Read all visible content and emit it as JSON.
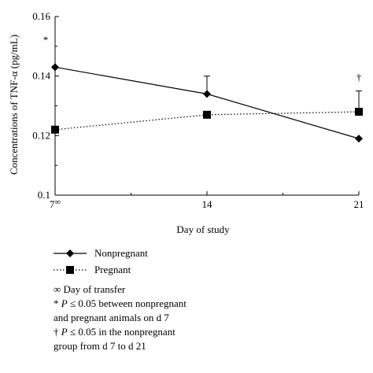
{
  "chart_data": {
    "type": "line",
    "xlabel": "Day of study",
    "ylabel": "Concentrations of TNF-α (pg/mL)",
    "x": [
      7,
      14,
      21
    ],
    "x_tick_labels": [
      "7",
      "14",
      "21"
    ],
    "x_tick_superscript_day7": "∞",
    "xlim": [
      7,
      21
    ],
    "ylim": [
      0.1,
      0.16
    ],
    "y_ticks": [
      0.1,
      0.12,
      0.14,
      0.16
    ],
    "y_tick_labels": [
      "0.1",
      "0.12",
      "0.14",
      "0.16"
    ],
    "series": [
      {
        "name": "Nonpregnant",
        "marker": "diamond",
        "line_style": "solid",
        "values": [
          0.143,
          0.134,
          0.119
        ],
        "error_up": [
          0.0,
          0.006,
          0.0
        ],
        "error_down": [
          0.0,
          0.0,
          0.0
        ]
      },
      {
        "name": "Pregnant",
        "marker": "square",
        "line_style": "dotted",
        "values": [
          0.122,
          0.127,
          0.128
        ],
        "error_up": [
          0.0,
          0.0,
          0.007
        ],
        "error_down": [
          0.0,
          0.0,
          0.0
        ]
      }
    ],
    "annotations": [
      {
        "symbol": "*",
        "x": 7,
        "y": 0.151
      },
      {
        "symbol": "†",
        "x": 21,
        "y": 0.1385
      }
    ],
    "notes": [
      {
        "symbol": "∞",
        "lines": [
          "Day of transfer"
        ]
      },
      {
        "symbol": "*",
        "lines": [
          "P ≤ 0.05 between nonpregnant",
          "and pregnant animals on d 7"
        ]
      },
      {
        "symbol": "†",
        "lines": [
          "P ≤ 0.05 in the nonpregnant",
          "group from d 7 to d 21"
        ]
      }
    ],
    "legend_position": "bottom-left"
  }
}
